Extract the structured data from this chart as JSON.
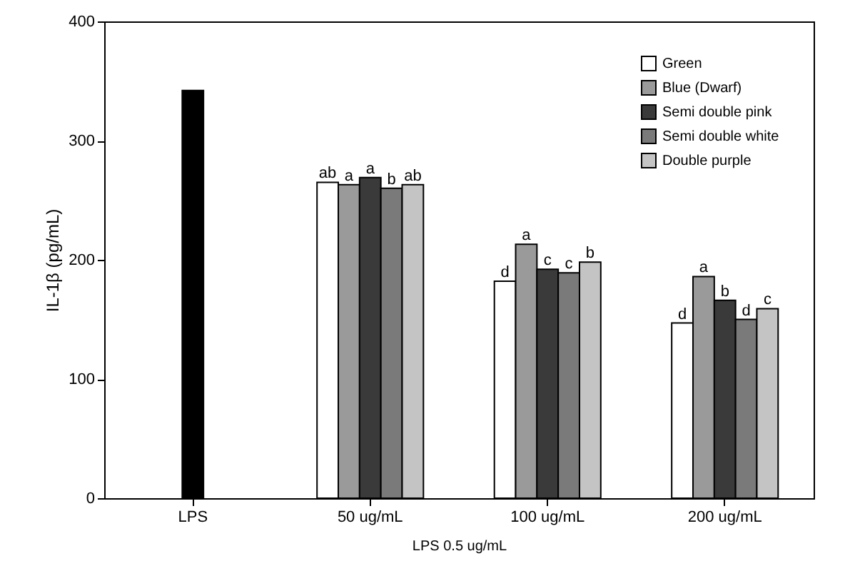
{
  "chart_data": {
    "type": "bar",
    "xlabel": "LPS 0.5 ug/mL",
    "ylabel": "IL-1β (pg/mL)",
    "categories": [
      "LPS",
      "50 ug/mL",
      "100 ug/mL",
      "200 ug/mL"
    ],
    "series": [
      {
        "color": "#000000",
        "values": [
          342,
          null,
          null,
          null
        ]
      },
      {
        "name": "Green",
        "color": "#ffffff",
        "values": [
          null,
          265,
          182,
          147
        ],
        "value_labels": [
          null,
          "ab",
          "d",
          "d"
        ]
      },
      {
        "name": "Blue (Dwarf)",
        "color": "#9a9a9a",
        "values": [
          null,
          263,
          213,
          186
        ],
        "value_labels": [
          null,
          "a",
          "a",
          "a"
        ]
      },
      {
        "name": "Semi double pink",
        "color": "#3a3a3a",
        "values": [
          null,
          269,
          192,
          166
        ],
        "value_labels": [
          null,
          "a",
          "c",
          "b"
        ]
      },
      {
        "name": "Semi double white",
        "color": "#7a7a7a",
        "values": [
          null,
          260,
          189,
          150
        ],
        "value_labels": [
          null,
          "b",
          "c",
          "d"
        ]
      },
      {
        "name": "Double purple",
        "color": "#c4c4c4",
        "values": [
          null,
          263,
          198,
          159
        ],
        "value_labels": [
          null,
          "ab",
          "b",
          "c"
        ]
      }
    ],
    "ylim": [
      0,
      400
    ],
    "yticks": [
      0,
      100,
      200,
      300,
      400
    ],
    "grid": false,
    "legend": "top right"
  }
}
